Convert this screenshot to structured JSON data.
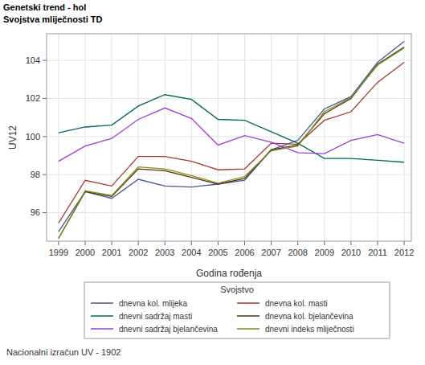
{
  "chart_data": {
    "type": "line",
    "title": "Genetski trend - hol",
    "subtitle": "Svojstva mliječnosti TD",
    "x_label": "Godina rođenja",
    "y_label": "UV12",
    "legend_title": "Svojstvo",
    "legend": "bottom",
    "grid": true,
    "annotations": [
      "Nacionalni izračun UV - 1902"
    ],
    "x": [
      1999,
      2000,
      2001,
      2002,
      2003,
      2004,
      2005,
      2006,
      2007,
      2008,
      2009,
      2010,
      2011,
      2012
    ],
    "xlim": [
      1998.55,
      2012.27
    ],
    "xticks": [
      1999,
      2000,
      2001,
      2002,
      2003,
      2004,
      2005,
      2006,
      2007,
      2008,
      2009,
      2010,
      2011,
      2012
    ],
    "ylim": [
      94.5,
      105.4
    ],
    "yticks": [
      96,
      98,
      100,
      102,
      104
    ],
    "series": [
      {
        "name": "dnevna kol. mlijeka",
        "color": "#445694",
        "values": [
          95.0,
          97.1,
          96.75,
          97.75,
          97.4,
          97.35,
          97.5,
          97.7,
          99.3,
          99.8,
          101.45,
          102.1,
          103.9,
          105.0
        ]
      },
      {
        "name": "dnevna kol. masti",
        "color": "#a23a2e",
        "values": [
          95.45,
          97.7,
          97.4,
          98.95,
          98.95,
          98.7,
          98.25,
          98.3,
          99.65,
          99.6,
          100.85,
          101.3,
          102.85,
          103.9
        ]
      },
      {
        "name": "dnevni sadržaj masti",
        "color": "#01665e",
        "values": [
          100.2,
          100.5,
          100.6,
          101.6,
          102.2,
          101.95,
          100.9,
          100.85,
          100.25,
          99.65,
          98.85,
          98.85,
          98.75,
          98.65
        ]
      },
      {
        "name": "dnevna kol. bjelančevina",
        "color": "#543005",
        "values": [
          94.65,
          97.1,
          96.85,
          98.3,
          98.2,
          97.85,
          97.5,
          97.8,
          99.3,
          99.55,
          101.2,
          102.0,
          103.8,
          104.7
        ]
      },
      {
        "name": "dnevni sadržaj bjelančevina",
        "color": "#9d3cdb",
        "values": [
          98.7,
          99.5,
          99.9,
          100.9,
          101.5,
          100.95,
          99.55,
          100.05,
          99.7,
          99.15,
          99.1,
          99.8,
          100.1,
          99.65
        ]
      },
      {
        "name": "dnevni indeks mliječnosti",
        "color": "#7f8e1f",
        "values": [
          94.65,
          97.15,
          96.9,
          98.4,
          98.3,
          97.95,
          97.55,
          97.9,
          99.25,
          99.5,
          101.3,
          102.05,
          103.75,
          104.65
        ]
      }
    ]
  }
}
